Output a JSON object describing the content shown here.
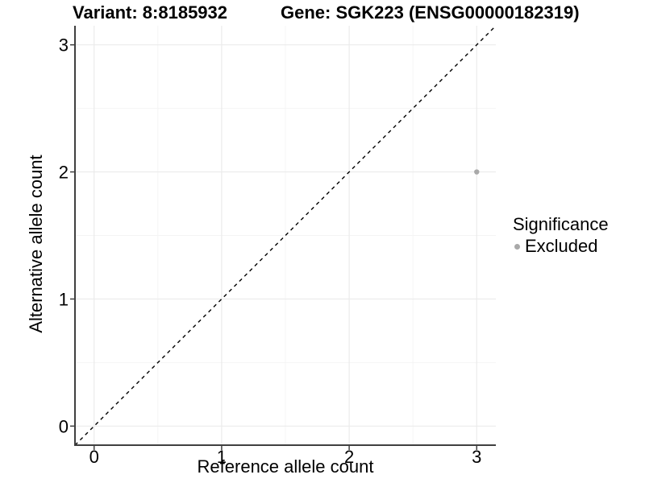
{
  "titles": {
    "variant": "Variant: 8:8185932",
    "gene": "Gene: SGK223 (ENSG00000182319)"
  },
  "chart_data": {
    "type": "scatter",
    "title_left": "Variant: 8:8185932",
    "title_right": "Gene: SGK223 (ENSG00000182319)",
    "xlabel": "Reference allele count",
    "ylabel": "Alternative allele count",
    "xlim": [
      -0.15,
      3.15
    ],
    "ylim": [
      -0.15,
      3.15
    ],
    "x_ticks": [
      0,
      1,
      2,
      3
    ],
    "y_ticks": [
      0,
      1,
      2,
      3
    ],
    "minor_ticks": [
      0.5,
      1.5,
      2.5
    ],
    "grid": "major+minor",
    "identity_line": {
      "style": "dashed",
      "color": "#000000",
      "from": [
        -0.15,
        -0.15
      ],
      "to": [
        3.15,
        3.15
      ]
    },
    "series": [
      {
        "name": "Excluded",
        "color": "#a9a9a9",
        "points": [
          {
            "x": 3,
            "y": 2
          }
        ]
      }
    ],
    "legend": {
      "position": "right",
      "title": "Significance",
      "items": [
        {
          "label": "Excluded",
          "color": "#a9a9a9"
        }
      ]
    },
    "colors": {
      "background": "#ffffff",
      "grid_major": "#ebebeb",
      "grid_minor": "#f4f4f4",
      "axis_line": "#404040",
      "tick_text": "#000000"
    }
  }
}
